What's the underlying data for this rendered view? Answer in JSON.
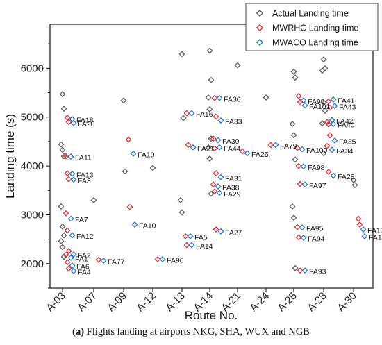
{
  "chart_data": {
    "type": "scatter",
    "xlabel": "Route No.",
    "ylabel": "Landing time (s)",
    "ylim": [
      1500,
      6900
    ],
    "yticks": [
      2000,
      3000,
      4000,
      5000,
      6000
    ],
    "categories": [
      "A-03",
      "A-07",
      "A-09",
      "A-12",
      "A-13",
      "A-14",
      "A-21",
      "A-24",
      "A-25",
      "A-28",
      "A-30"
    ],
    "legend_position": "top-right",
    "series": [
      {
        "name": "Actual Landing time",
        "color": "#555555",
        "marker": "diamond"
      },
      {
        "name": "MWRHC Landing time",
        "color": "#e8252a",
        "marker": "diamond"
      },
      {
        "name": "MWACO Landing time",
        "color": "#1f6fd6",
        "marker": "diamond"
      }
    ],
    "flights": [
      {
        "label": "FA18",
        "route": "A-03",
        "actual": 5470,
        "mwrhc": 4990,
        "mwaco": 4960
      },
      {
        "label": "FA20",
        "route": "A-03",
        "actual": 5170,
        "mwrhc": 4900,
        "mwaco": 4880
      },
      {
        "label": "FA11",
        "route": "A-03",
        "actual": 4440,
        "mwrhc": 4200,
        "mwaco": 4190
      },
      {
        "label": "FA13",
        "route": "A-03",
        "actual": 4330,
        "mwrhc": 3850,
        "mwaco": 3840
      },
      {
        "label": "FA3",
        "route": "A-03",
        "actual": 4200,
        "mwrhc": 3730,
        "mwaco": 3720
      },
      {
        "label": "FA7",
        "route": "A-03",
        "actual": 3170,
        "mwrhc": 3030,
        "mwaco": 2920
      },
      {
        "label": "FA12",
        "route": "A-03",
        "actual": 2760,
        "mwrhc": 2680,
        "mwaco": 2580
      },
      {
        "label": "FA2",
        "route": "A-03",
        "actual": 2580,
        "mwrhc": 2260,
        "mwaco": 2190
      },
      {
        "label": "FA1",
        "route": "A-03",
        "actual": 2460,
        "mwrhc": 2180,
        "mwaco": 2120
      },
      {
        "label": "FA6",
        "route": "A-03",
        "actual": 2340,
        "mwrhc": 2030,
        "mwaco": 1960
      },
      {
        "label": "FA4",
        "route": "A-03",
        "actual": 2140,
        "mwrhc": 1900,
        "mwaco": 1850
      },
      {
        "label": "FA77",
        "route": "A-07",
        "actual": 3300,
        "mwrhc": 2080,
        "mwaco": 2060
      },
      {
        "label": "FA19",
        "route": "A-09",
        "actual": 5340,
        "mwrhc": 4540,
        "mwaco": 4250
      },
      {
        "label": "FA10",
        "route": "A-09",
        "actual": 3890,
        "mwrhc": 3160,
        "mwaco": 2800
      },
      {
        "label": "FA96",
        "route": "A-12",
        "actual": 3960,
        "mwrhc": 2090,
        "mwaco": 2090
      },
      {
        "label": "FA16",
        "route": "A-13",
        "actual": 6290,
        "mwrhc": 5080,
        "mwaco": 5080
      },
      {
        "label": "FA21",
        "route": "A-13",
        "actual": 4980,
        "mwrhc": 4430,
        "mwaco": 4380
      },
      {
        "label": "FA5",
        "route": "A-13",
        "actual": 3300,
        "mwrhc": 2560,
        "mwaco": 2560
      },
      {
        "label": "FA14",
        "route": "A-13",
        "actual": 3050,
        "mwrhc": 2380,
        "mwaco": 2380
      },
      {
        "label": "FA36",
        "route": "A-14",
        "actual": 6360,
        "mwrhc": 5390,
        "mwaco": 5390
      },
      {
        "label": "FA33",
        "route": "A-14",
        "actual": 5760,
        "mwrhc": 5010,
        "mwaco": 4930
      },
      {
        "label": "FA30",
        "route": "A-14",
        "actual": 5400,
        "mwrhc": 4560,
        "mwaco": 4530
      },
      {
        "label": "FA44",
        "route": "A-14",
        "actual": 5160,
        "mwrhc": 4360,
        "mwaco": 4380
      },
      {
        "label": "FA31",
        "route": "A-14",
        "actual": 4560,
        "mwrhc": 3850,
        "mwaco": 3770
      },
      {
        "label": "FA38",
        "route": "A-14",
        "actual": 4380,
        "mwrhc": 3620,
        "mwaco": 3580
      },
      {
        "label": "FA29",
        "route": "A-14",
        "actual": 4150,
        "mwrhc": 3480,
        "mwaco": 3450
      },
      {
        "label": "FA27",
        "route": "A-14",
        "actual": 3430,
        "mwrhc": 2700,
        "mwaco": 2660
      },
      {
        "label": "FA25",
        "route": "A-21",
        "actual": 6060,
        "mwrhc": 4300,
        "mwaco": 4260
      },
      {
        "label": "FA79",
        "route": "A-24",
        "actual": 5400,
        "mwrhc": 4430,
        "mwaco": 4430
      },
      {
        "label": "FA99",
        "route": "A-25",
        "actual": 5930,
        "mwrhc": 5430,
        "mwaco": 5340
      },
      {
        "label": "FA101",
        "route": "A-25",
        "actual": 5810,
        "mwrhc": 5310,
        "mwaco": 5240
      },
      {
        "label": "FA100",
        "route": "A-25",
        "actual": 4860,
        "mwrhc": 4370,
        "mwaco": 4340
      },
      {
        "label": "FA98",
        "route": "A-25",
        "actual": 4630,
        "mwrhc": 4000,
        "mwaco": 3990
      },
      {
        "label": "FA97",
        "route": "A-25",
        "actual": 4130,
        "mwrhc": 3630,
        "mwaco": 3620
      },
      {
        "label": "FA95",
        "route": "A-25",
        "actual": 3170,
        "mwrhc": 2750,
        "mwaco": 2740
      },
      {
        "label": "FA94",
        "route": "A-25",
        "actual": 2940,
        "mwrhc": 2540,
        "mwaco": 2530
      },
      {
        "label": "FA93",
        "route": "A-25",
        "actual": 1910,
        "mwrhc": 1860,
        "mwaco": 1860
      },
      {
        "label": "FA41",
        "route": "A-28",
        "actual": 6180,
        "mwrhc": 5320,
        "mwaco": 5360
      },
      {
        "label": "FA43",
        "route": "A-28",
        "actual": 6000,
        "mwrhc": 5190,
        "mwaco": 5230
      },
      {
        "label": "FA42",
        "route": "A-28",
        "actual": 5950,
        "mwrhc": 4900,
        "mwaco": 4940
      },
      {
        "label": "FA40",
        "route": "A-28",
        "actual": 5300,
        "mwrhc": 4850,
        "mwaco": 4860
      },
      {
        "label": "FA35",
        "route": "A-28",
        "actual": 5130,
        "mwrhc": 4630,
        "mwaco": 4520
      },
      {
        "label": "FA34",
        "route": "A-28",
        "actual": 4870,
        "mwrhc": 4410,
        "mwaco": 4330
      },
      {
        "label": "FA28",
        "route": "A-28",
        "actual": 4260,
        "mwrhc": 3880,
        "mwaco": 3800
      },
      {
        "label": "FA17",
        "route": "A-30",
        "actual": 3710,
        "mwrhc": 2920,
        "mwaco": 2700
      },
      {
        "label": "FA15",
        "route": "A-30",
        "actual": 3610,
        "mwrhc": 2800,
        "mwaco": 2560
      }
    ]
  },
  "caption": {
    "prefix": "(a)",
    "text": " Flights landing at airports NKG, SHA, WUX and NGB"
  }
}
